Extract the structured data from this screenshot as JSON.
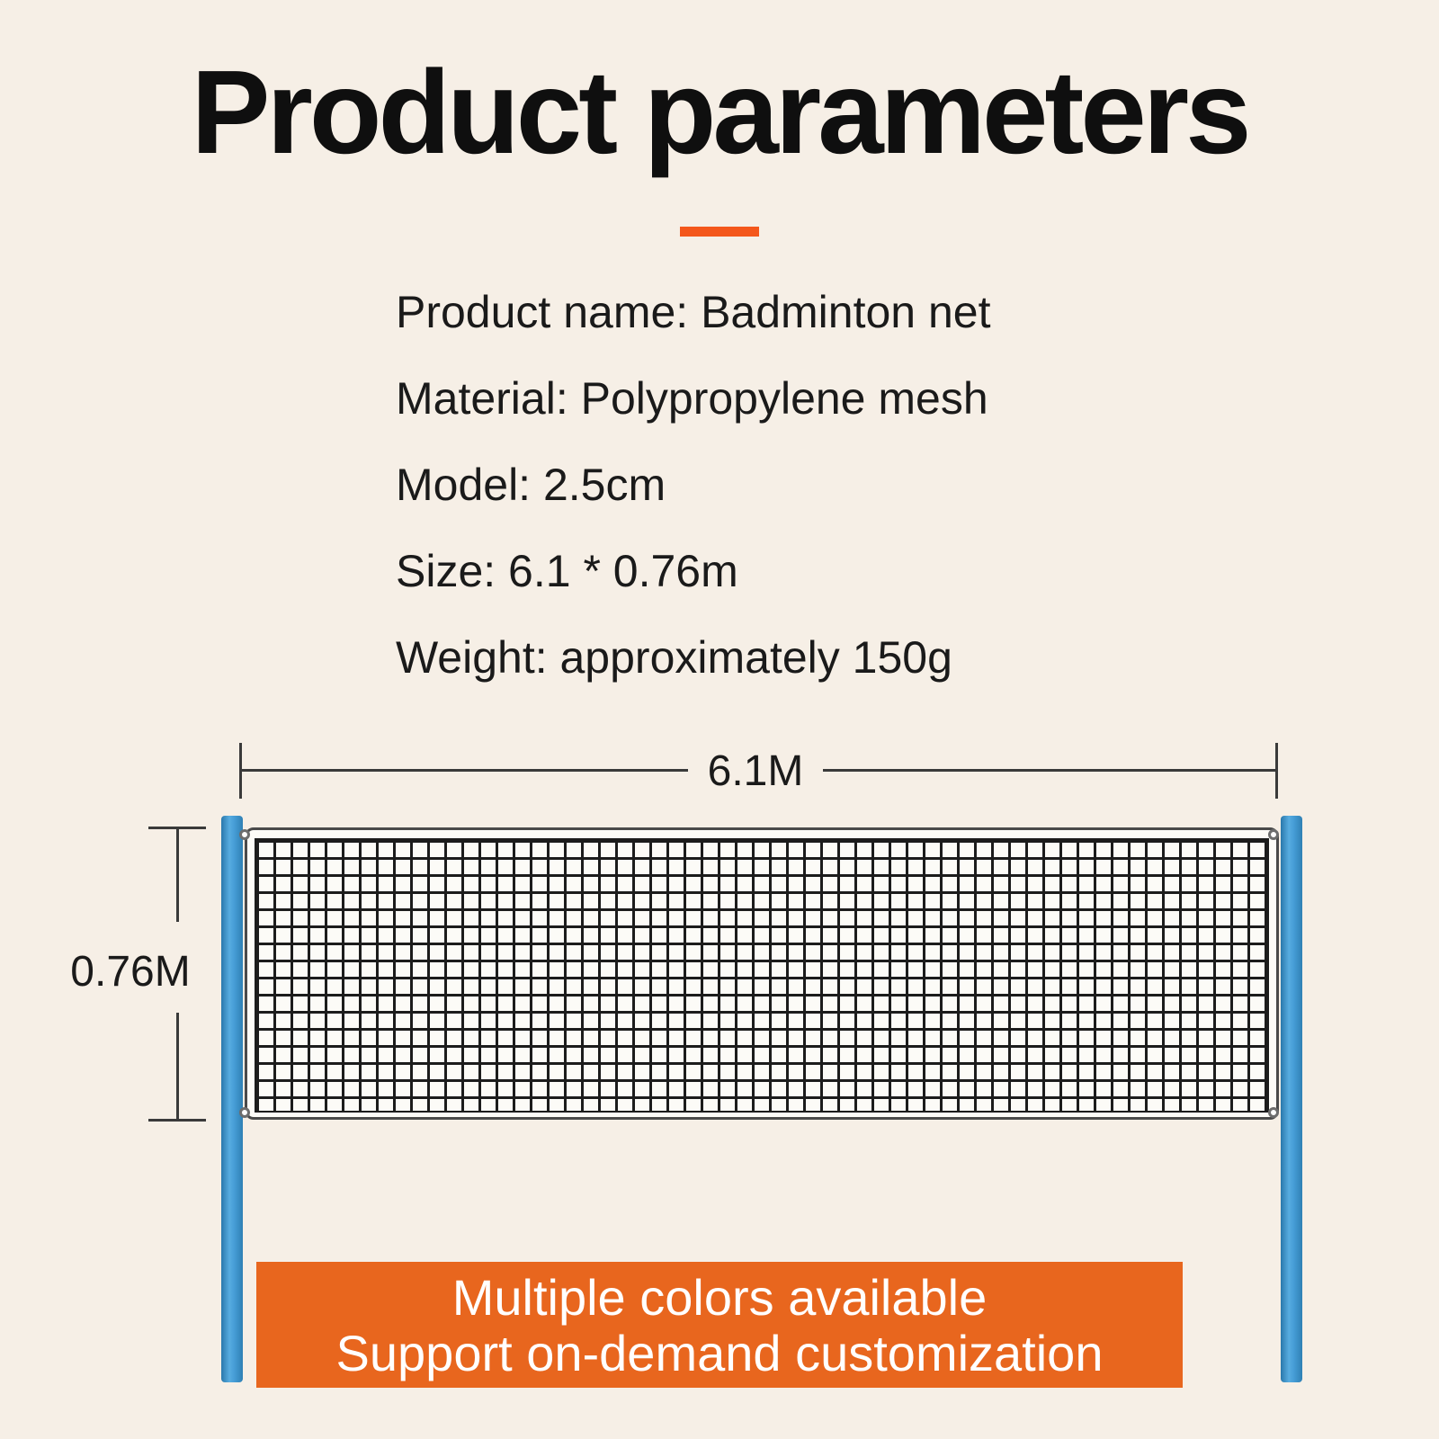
{
  "title": "Product parameters",
  "specs": [
    "Product name: Badminton net",
    "Material: Polypropylene mesh",
    "Model: 2.5cm",
    "Size: 6.1 * 0.76m",
    "Weight: approximately 150g"
  ],
  "diagram": {
    "width_label": "6.1M",
    "height_label": "0.76M"
  },
  "banner": {
    "lines": [
      "Multiple colors available",
      "Support on-demand customization"
    ]
  },
  "colors": {
    "background": "#f6efe6",
    "accent_orange_divider": "#f4571b",
    "banner_orange": "#e8661e",
    "pole_blue": "#3e97d2",
    "net_grid_line": "#1c1c1c",
    "dimension_line": "#3a3a3a",
    "text": "#1a1a1a",
    "banner_text": "#ffffff"
  }
}
